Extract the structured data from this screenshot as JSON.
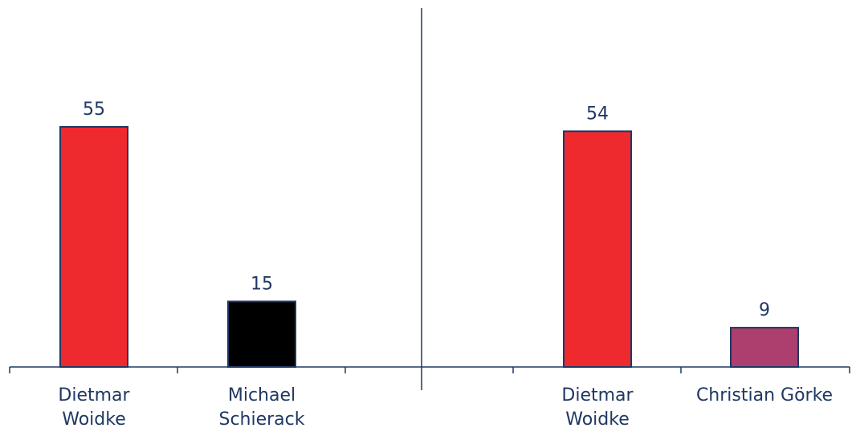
{
  "chart_data": {
    "type": "bar",
    "axis_color": "#1f3864",
    "bar_stroke": "#1f3864",
    "text_color": "#1f3864",
    "ylim": [
      0,
      65
    ],
    "grid": false,
    "legend": "none",
    "slots": 5,
    "categories": [
      {
        "lines": [
          "Dietmar",
          "Woidke"
        ],
        "value": 55,
        "value_label": "55",
        "color": "#ee2a2e"
      },
      {
        "lines": [
          "Michael",
          "Schierack"
        ],
        "value": 15,
        "value_label": "15",
        "color": "#000000"
      },
      {
        "lines": [],
        "value": null
      },
      {
        "lines": [],
        "value": null
      },
      {
        "lines": [
          "Dietmar",
          "Woidke"
        ],
        "value": 54,
        "value_label": "54",
        "color": "#ee2a2e"
      },
      {
        "lines": [
          "Christian Görke"
        ],
        "value": 9,
        "value_label": "9",
        "color": "#ad3f6e"
      }
    ]
  }
}
